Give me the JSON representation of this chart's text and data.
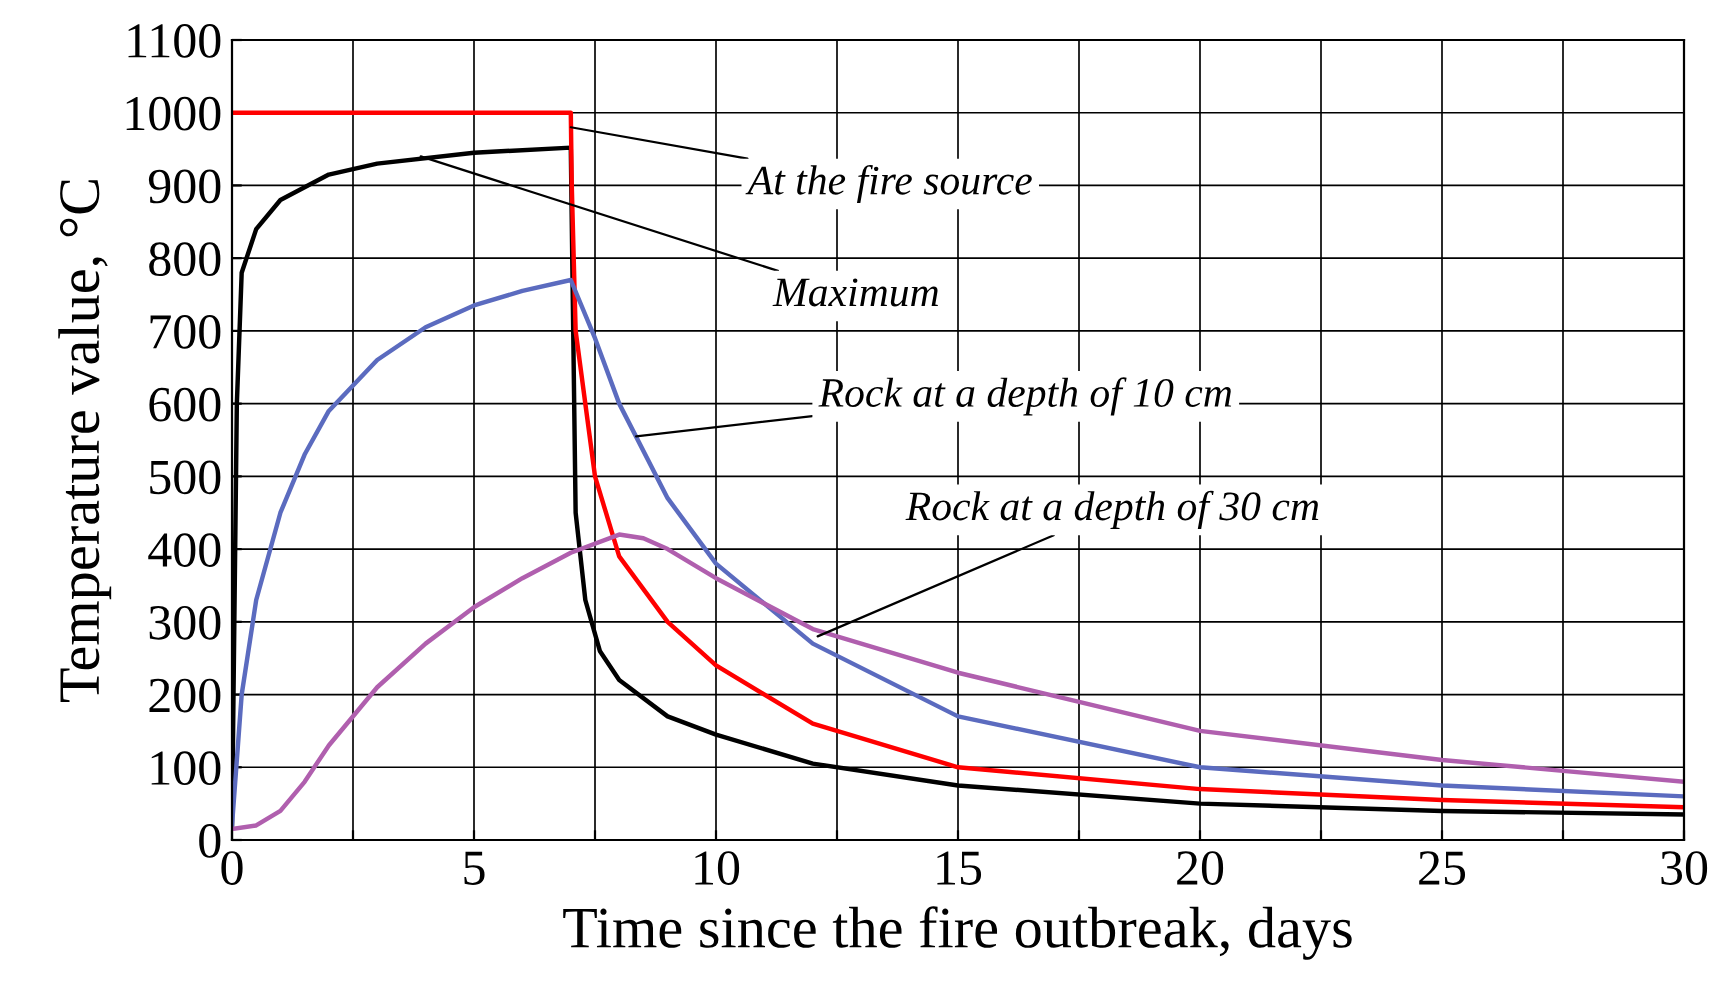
{
  "chart_data": {
    "type": "line",
    "xlabel": "Time since the fire outbreak, days",
    "ylabel": "Temperature value, °C",
    "xlim": [
      0,
      30
    ],
    "ylim": [
      0,
      1100
    ],
    "xticks": [
      0,
      {
        "value": 2.5,
        "label": null
      },
      5,
      {
        "value": 7.5,
        "label": null
      },
      10,
      {
        "value": 12.5,
        "label": null
      },
      15,
      {
        "value": 17.5,
        "label": null
      },
      20,
      {
        "value": 22.5,
        "label": null
      },
      25,
      {
        "value": 27.5,
        "label": null
      },
      30
    ],
    "yticks": [
      0,
      100,
      200,
      300,
      400,
      500,
      600,
      700,
      800,
      900,
      1000,
      1100
    ],
    "grid": true,
    "legend": false,
    "marker": "none",
    "line_style": "solid",
    "series": [
      {
        "color": "#000000",
        "x": [
          0,
          0.1,
          0.2,
          0.5,
          1,
          2,
          3,
          5,
          7,
          7.05,
          7.1,
          7.3,
          7.6,
          8,
          9,
          10,
          12,
          15,
          20,
          25,
          30
        ],
        "values": [
          20,
          600,
          780,
          840,
          880,
          915,
          930,
          945,
          952,
          700,
          450,
          330,
          260,
          220,
          170,
          145,
          105,
          75,
          50,
          40,
          35
        ]
      },
      {
        "color": "#ff0000",
        "x": [
          0,
          7,
          7.02,
          7.1,
          7.5,
          8,
          9,
          10,
          12,
          15,
          20,
          25,
          30
        ],
        "values": [
          1000,
          1000,
          900,
          700,
          500,
          390,
          300,
          240,
          160,
          100,
          70,
          55,
          45
        ]
      },
      {
        "color": "#5b6bbf",
        "x": [
          0,
          0.2,
          0.5,
          1,
          1.5,
          2,
          3,
          4,
          5,
          6,
          7,
          7.5,
          8,
          9,
          10,
          12,
          15,
          20,
          25,
          30
        ],
        "values": [
          20,
          200,
          330,
          450,
          530,
          590,
          660,
          705,
          735,
          755,
          770,
          690,
          600,
          470,
          380,
          270,
          170,
          100,
          75,
          60
        ]
      },
      {
        "color": "#b05fae",
        "x": [
          0,
          0.5,
          1,
          1.5,
          2,
          3,
          4,
          5,
          6,
          7,
          8,
          8.5,
          9,
          10,
          12,
          15,
          20,
          25,
          30
        ],
        "values": [
          15,
          20,
          40,
          80,
          130,
          210,
          270,
          320,
          360,
          395,
          420,
          415,
          400,
          360,
          290,
          230,
          150,
          110,
          80
        ]
      }
    ],
    "annotations": [
      {
        "text": "At the fire source",
        "x": 7,
        "y": 980
      },
      {
        "text": "Maximum",
        "x": 3.9,
        "y": 940
      },
      {
        "text": "Rock at a depth of 10 cm",
        "x": 8.35,
        "y": 555
      },
      {
        "text": "Rock at a depth of 30 cm",
        "x": 12.1,
        "y": 280
      }
    ]
  }
}
